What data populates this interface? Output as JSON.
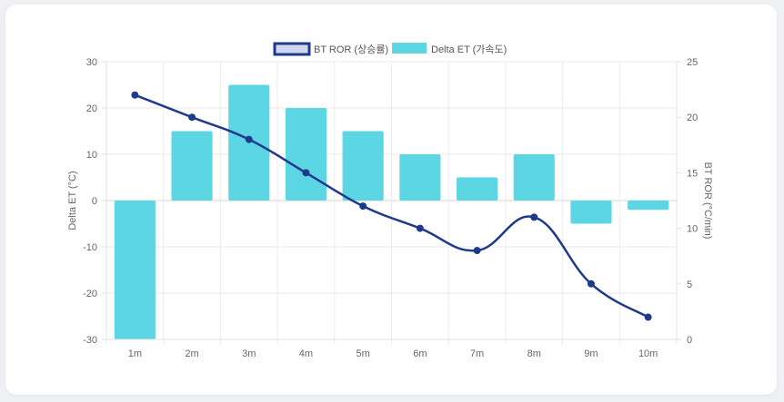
{
  "chart_data": {
    "type": "bar+line",
    "categories": [
      "1m",
      "2m",
      "3m",
      "4m",
      "5m",
      "6m",
      "7m",
      "8m",
      "9m",
      "10m"
    ],
    "series": [
      {
        "name": "Delta ET (가속도)",
        "type": "bar",
        "axis": "left",
        "color": "#5dd6e4",
        "values": [
          -30,
          15,
          25,
          20,
          15,
          10,
          5,
          10,
          -5,
          -2
        ]
      },
      {
        "name": "BT ROR (상승률)",
        "type": "line",
        "axis": "right",
        "color": "#1f3a8c",
        "legend_fill": "#cfd8ee",
        "values": [
          22,
          20,
          18,
          15,
          12,
          10,
          8,
          11,
          5,
          2
        ]
      }
    ],
    "y_left": {
      "label": "Delta ET (°C)",
      "range": [
        -30,
        30
      ],
      "ticks": [
        30,
        20,
        10,
        0,
        -10,
        -20,
        -30
      ]
    },
    "y_right": {
      "label": "BT ROR (°C/min)",
      "range": [
        0,
        25
      ],
      "ticks": [
        25,
        20,
        15,
        10,
        5,
        0
      ]
    },
    "legend_position": "top-center",
    "grid": true
  }
}
